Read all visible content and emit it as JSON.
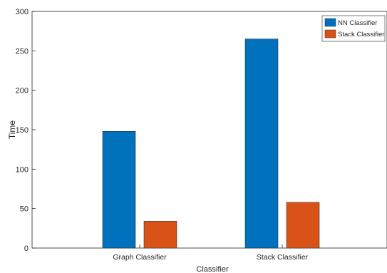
{
  "chart_data": {
    "type": "bar",
    "categories": [
      "Graph Classifier",
      "Stack Classifier"
    ],
    "series": [
      {
        "name": "NN Classifier",
        "color": "#0072BD",
        "values": [
          148,
          265
        ]
      },
      {
        "name": "Stack Classifier",
        "color": "#D95319",
        "values": [
          34,
          58
        ]
      }
    ],
    "xlabel": "Classifier",
    "ylabel": "Time",
    "ylim": [
      0,
      300
    ],
    "yticks": [
      0,
      50,
      100,
      150,
      200,
      250,
      300
    ],
    "grid": false,
    "legend_position": "top-right"
  }
}
